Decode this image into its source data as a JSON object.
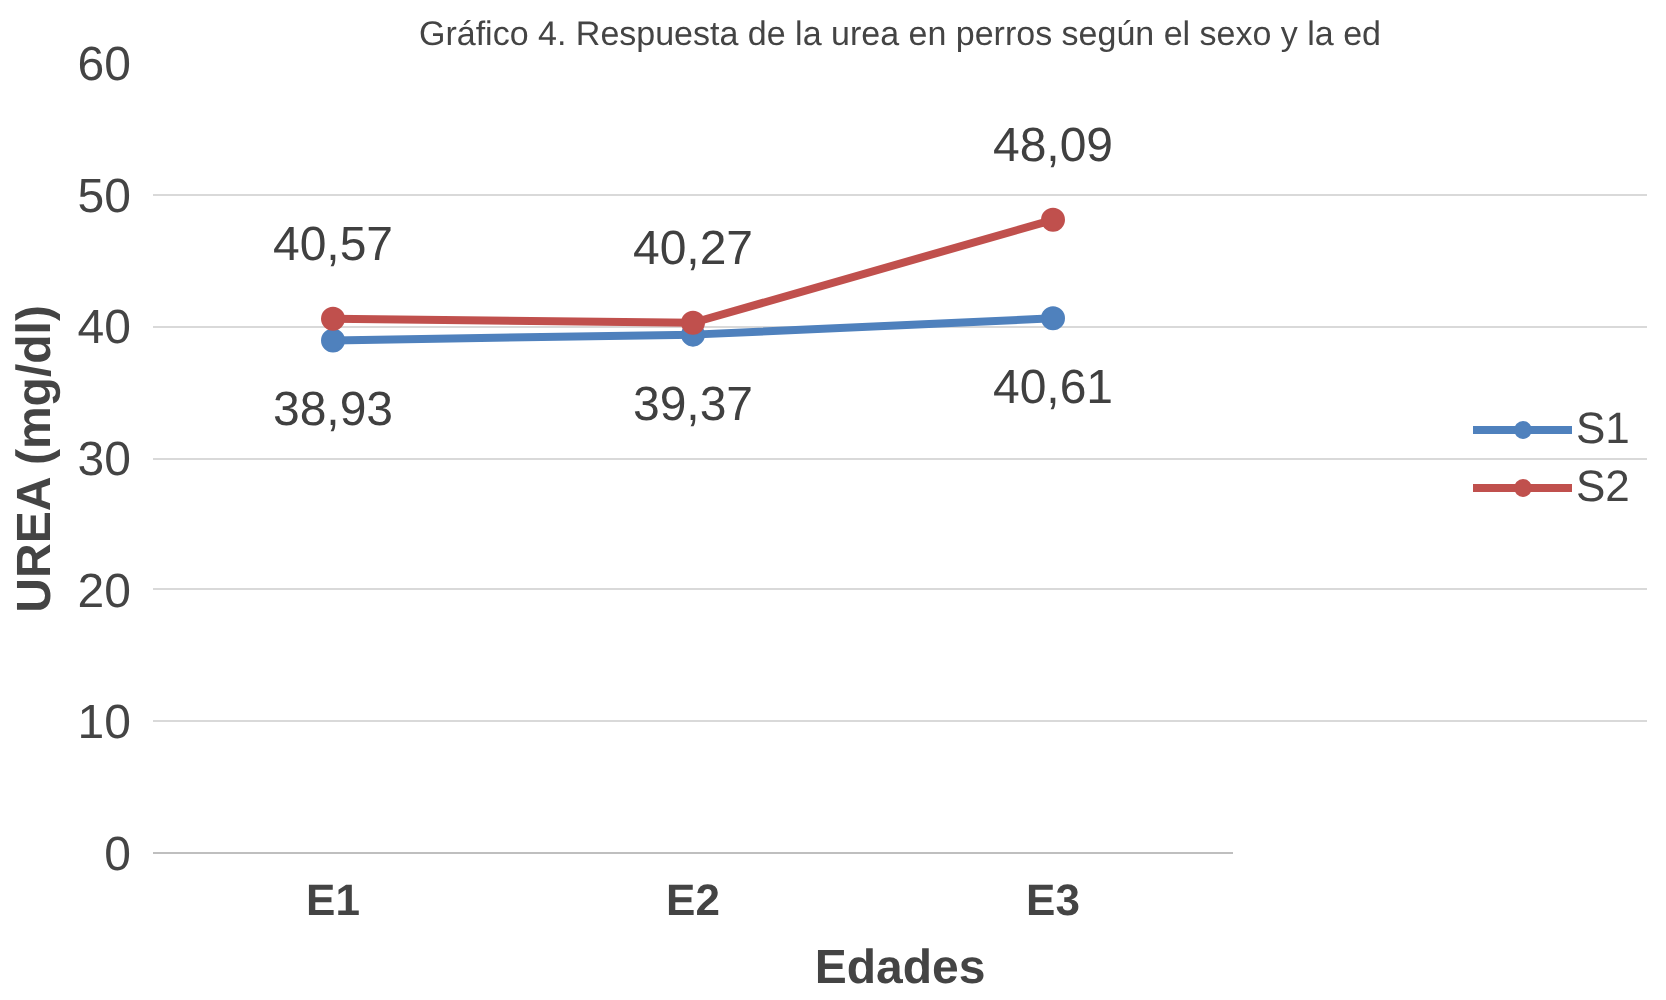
{
  "chart_data": {
    "type": "line",
    "title": "Gráfico 4. Respuesta de la urea en perros según el sexo y la ed",
    "xlabel": "Edades",
    "ylabel": "UREA (mg/dl)",
    "categories": [
      "E1",
      "E2",
      "E3"
    ],
    "series": [
      {
        "name": "S1",
        "color": "#4f81bd",
        "values": [
          38.93,
          39.37,
          40.61
        ],
        "value_labels": [
          "38,93",
          "39,37",
          "40,61"
        ]
      },
      {
        "name": "S2",
        "color": "#c0504d",
        "values": [
          40.57,
          40.27,
          48.09
        ],
        "value_labels": [
          "40,57",
          "40,27",
          "48,09"
        ]
      }
    ],
    "ylim": [
      0,
      60
    ],
    "yticks": [
      0,
      10,
      20,
      30,
      40,
      50,
      60
    ],
    "grid": "y",
    "legend": "right",
    "marker": "circle"
  }
}
